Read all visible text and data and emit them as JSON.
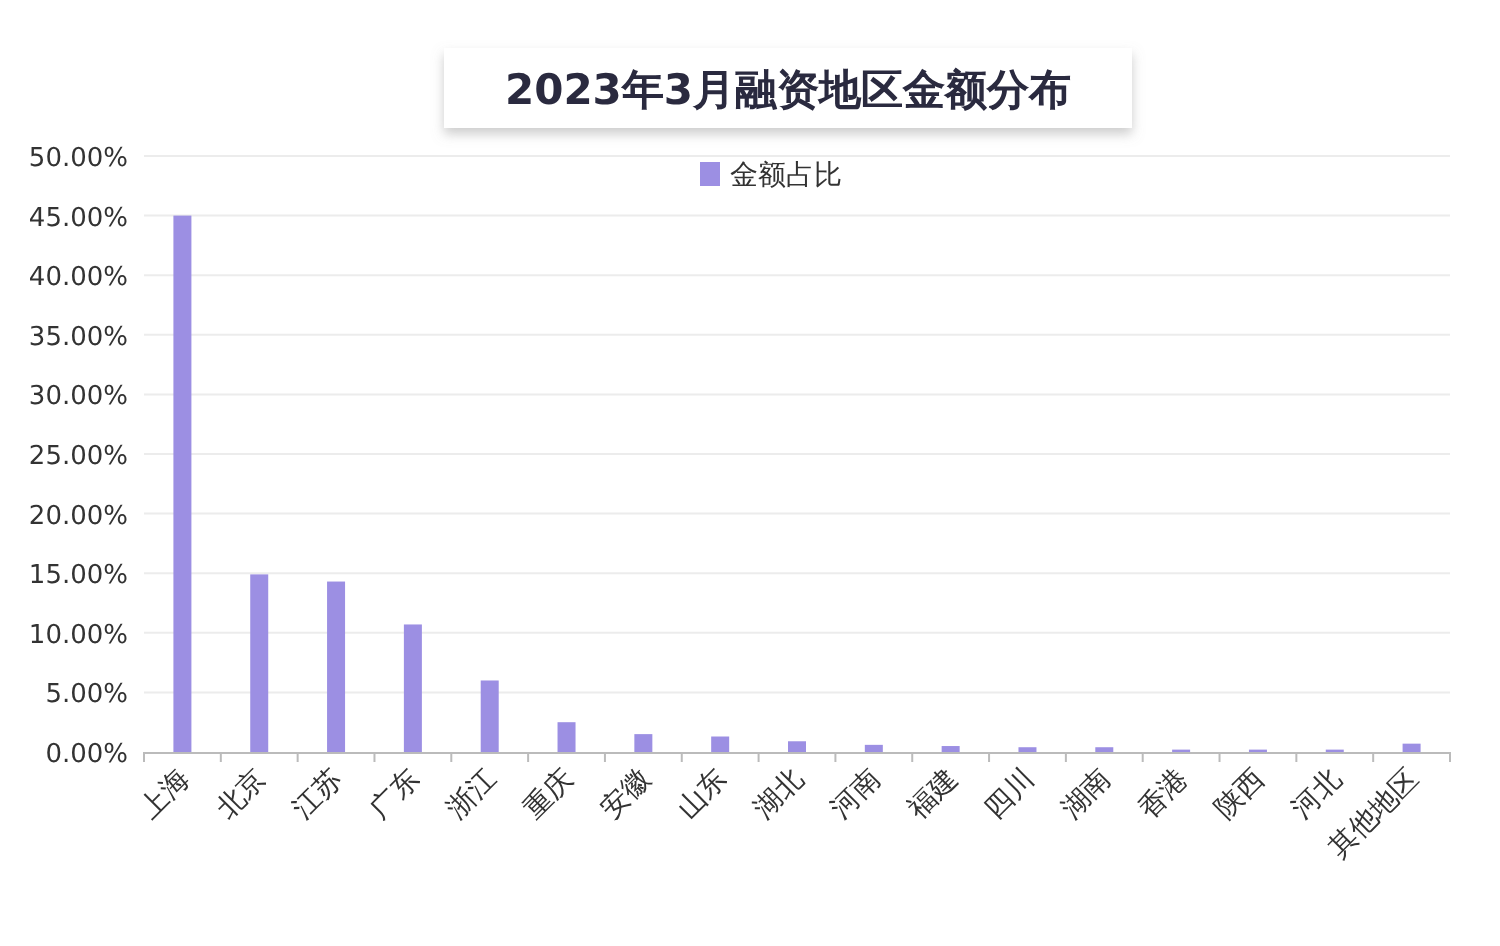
{
  "chart_data": {
    "type": "bar",
    "title": "2023年3月融资地区金额分布",
    "categories": [
      "上海",
      "北京",
      "江苏",
      "广东",
      "浙江",
      "重庆",
      "安徽",
      "山东",
      "湖北",
      "河南",
      "福建",
      "四川",
      "湖南",
      "香港",
      "陕西",
      "河北",
      "其他地区"
    ],
    "series": [
      {
        "name": "金额占比",
        "color": "#9c8fe3",
        "values": [
          45,
          14.9,
          14.3,
          10.7,
          6.0,
          2.5,
          1.5,
          1.3,
          0.9,
          0.6,
          0.5,
          0.4,
          0.4,
          0.2,
          0.2,
          0.2,
          0.7
        ]
      }
    ],
    "ylim": [
      0,
      50
    ],
    "yticks": [
      {
        "value": 0,
        "label": "0.00%"
      },
      {
        "value": 5,
        "label": "5.00%"
      },
      {
        "value": 10,
        "label": "10.00%"
      },
      {
        "value": 15,
        "label": "15.00%"
      },
      {
        "value": 20,
        "label": "20.00%"
      },
      {
        "value": 25,
        "label": "25.00%"
      },
      {
        "value": 30,
        "label": "30.00%"
      },
      {
        "value": 35,
        "label": "35.00%"
      },
      {
        "value": 40,
        "label": "40.00%"
      },
      {
        "value": 45,
        "label": "45.00%"
      },
      {
        "value": 50,
        "label": "50.00%"
      }
    ],
    "grid": "y",
    "legend": "top"
  }
}
